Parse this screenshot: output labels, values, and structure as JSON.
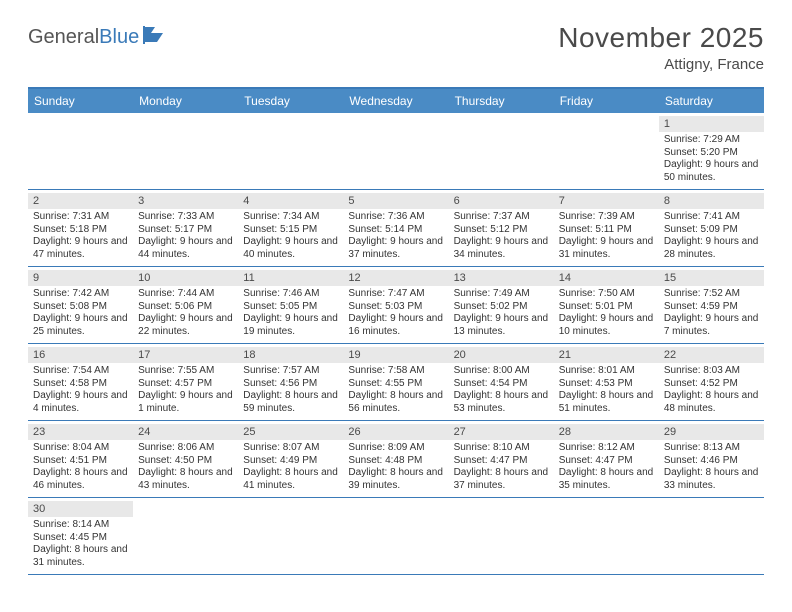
{
  "logo": {
    "general": "General",
    "blue": "Blue"
  },
  "title": "November 2025",
  "location": "Attigny, France",
  "colors": {
    "header_bg": "#4a8bc5",
    "border": "#3a7ab8",
    "daynum_bg": "#e8e8e8",
    "text": "#333333",
    "title_text": "#4a4a4a"
  },
  "weekdays": [
    "Sunday",
    "Monday",
    "Tuesday",
    "Wednesday",
    "Thursday",
    "Friday",
    "Saturday"
  ],
  "weeks": [
    [
      null,
      null,
      null,
      null,
      null,
      null,
      {
        "n": "1",
        "sr": "7:29 AM",
        "ss": "5:20 PM",
        "dl": "9 hours and 50 minutes."
      }
    ],
    [
      {
        "n": "2",
        "sr": "7:31 AM",
        "ss": "5:18 PM",
        "dl": "9 hours and 47 minutes."
      },
      {
        "n": "3",
        "sr": "7:33 AM",
        "ss": "5:17 PM",
        "dl": "9 hours and 44 minutes."
      },
      {
        "n": "4",
        "sr": "7:34 AM",
        "ss": "5:15 PM",
        "dl": "9 hours and 40 minutes."
      },
      {
        "n": "5",
        "sr": "7:36 AM",
        "ss": "5:14 PM",
        "dl": "9 hours and 37 minutes."
      },
      {
        "n": "6",
        "sr": "7:37 AM",
        "ss": "5:12 PM",
        "dl": "9 hours and 34 minutes."
      },
      {
        "n": "7",
        "sr": "7:39 AM",
        "ss": "5:11 PM",
        "dl": "9 hours and 31 minutes."
      },
      {
        "n": "8",
        "sr": "7:41 AM",
        "ss": "5:09 PM",
        "dl": "9 hours and 28 minutes."
      }
    ],
    [
      {
        "n": "9",
        "sr": "7:42 AM",
        "ss": "5:08 PM",
        "dl": "9 hours and 25 minutes."
      },
      {
        "n": "10",
        "sr": "7:44 AM",
        "ss": "5:06 PM",
        "dl": "9 hours and 22 minutes."
      },
      {
        "n": "11",
        "sr": "7:46 AM",
        "ss": "5:05 PM",
        "dl": "9 hours and 19 minutes."
      },
      {
        "n": "12",
        "sr": "7:47 AM",
        "ss": "5:03 PM",
        "dl": "9 hours and 16 minutes."
      },
      {
        "n": "13",
        "sr": "7:49 AM",
        "ss": "5:02 PM",
        "dl": "9 hours and 13 minutes."
      },
      {
        "n": "14",
        "sr": "7:50 AM",
        "ss": "5:01 PM",
        "dl": "9 hours and 10 minutes."
      },
      {
        "n": "15",
        "sr": "7:52 AM",
        "ss": "4:59 PM",
        "dl": "9 hours and 7 minutes."
      }
    ],
    [
      {
        "n": "16",
        "sr": "7:54 AM",
        "ss": "4:58 PM",
        "dl": "9 hours and 4 minutes."
      },
      {
        "n": "17",
        "sr": "7:55 AM",
        "ss": "4:57 PM",
        "dl": "9 hours and 1 minute."
      },
      {
        "n": "18",
        "sr": "7:57 AM",
        "ss": "4:56 PM",
        "dl": "8 hours and 59 minutes."
      },
      {
        "n": "19",
        "sr": "7:58 AM",
        "ss": "4:55 PM",
        "dl": "8 hours and 56 minutes."
      },
      {
        "n": "20",
        "sr": "8:00 AM",
        "ss": "4:54 PM",
        "dl": "8 hours and 53 minutes."
      },
      {
        "n": "21",
        "sr": "8:01 AM",
        "ss": "4:53 PM",
        "dl": "8 hours and 51 minutes."
      },
      {
        "n": "22",
        "sr": "8:03 AM",
        "ss": "4:52 PM",
        "dl": "8 hours and 48 minutes."
      }
    ],
    [
      {
        "n": "23",
        "sr": "8:04 AM",
        "ss": "4:51 PM",
        "dl": "8 hours and 46 minutes."
      },
      {
        "n": "24",
        "sr": "8:06 AM",
        "ss": "4:50 PM",
        "dl": "8 hours and 43 minutes."
      },
      {
        "n": "25",
        "sr": "8:07 AM",
        "ss": "4:49 PM",
        "dl": "8 hours and 41 minutes."
      },
      {
        "n": "26",
        "sr": "8:09 AM",
        "ss": "4:48 PM",
        "dl": "8 hours and 39 minutes."
      },
      {
        "n": "27",
        "sr": "8:10 AM",
        "ss": "4:47 PM",
        "dl": "8 hours and 37 minutes."
      },
      {
        "n": "28",
        "sr": "8:12 AM",
        "ss": "4:47 PM",
        "dl": "8 hours and 35 minutes."
      },
      {
        "n": "29",
        "sr": "8:13 AM",
        "ss": "4:46 PM",
        "dl": "8 hours and 33 minutes."
      }
    ],
    [
      {
        "n": "30",
        "sr": "8:14 AM",
        "ss": "4:45 PM",
        "dl": "8 hours and 31 minutes."
      },
      null,
      null,
      null,
      null,
      null,
      null
    ]
  ],
  "labels": {
    "sunrise": "Sunrise:",
    "sunset": "Sunset:",
    "daylight": "Daylight:"
  }
}
